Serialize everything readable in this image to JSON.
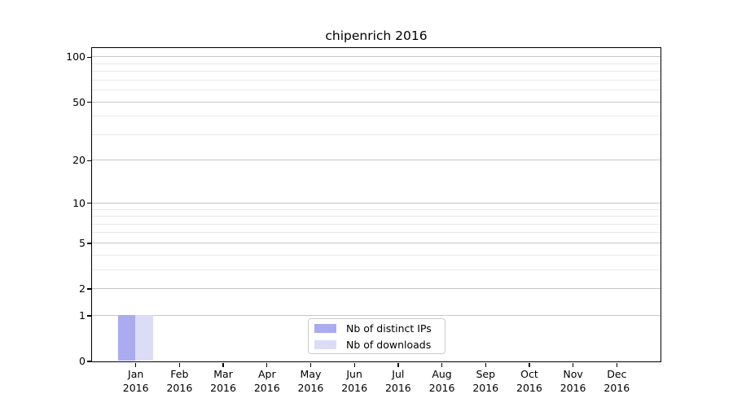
{
  "chart_data": {
    "type": "bar",
    "title": "chipenrich 2016",
    "x_categories": [
      "Jan",
      "Feb",
      "Mar",
      "Apr",
      "May",
      "Jun",
      "Jul",
      "Aug",
      "Sep",
      "Oct",
      "Nov",
      "Dec"
    ],
    "x_year": "2016",
    "series": [
      {
        "name": "Nb of distinct IPs",
        "color": "#aaabf0",
        "values": [
          1,
          0,
          0,
          0,
          0,
          0,
          0,
          0,
          0,
          0,
          0,
          0
        ]
      },
      {
        "name": "Nb of downloads",
        "color": "#dcdcf7",
        "values": [
          1,
          0,
          0,
          0,
          0,
          0,
          0,
          0,
          0,
          0,
          0,
          0
        ]
      }
    ],
    "y_scale": "log1p",
    "ylim": [
      0,
      115
    ],
    "y_tick_labels": [
      "0",
      "1",
      "2",
      "5",
      "10",
      "20",
      "50",
      "100"
    ],
    "y_tick_values": [
      0,
      1,
      2,
      5,
      10,
      20,
      50,
      100
    ],
    "y_minor_values": [
      3,
      4,
      6,
      7,
      8,
      9,
      30,
      40,
      60,
      70,
      80,
      90
    ],
    "grid": true,
    "legend_position": "lower center",
    "colors": {
      "grid_major": "#c6c6c6",
      "grid_minor": "#e9e9e9",
      "axis": "#000000",
      "background": "#ffffff"
    }
  }
}
